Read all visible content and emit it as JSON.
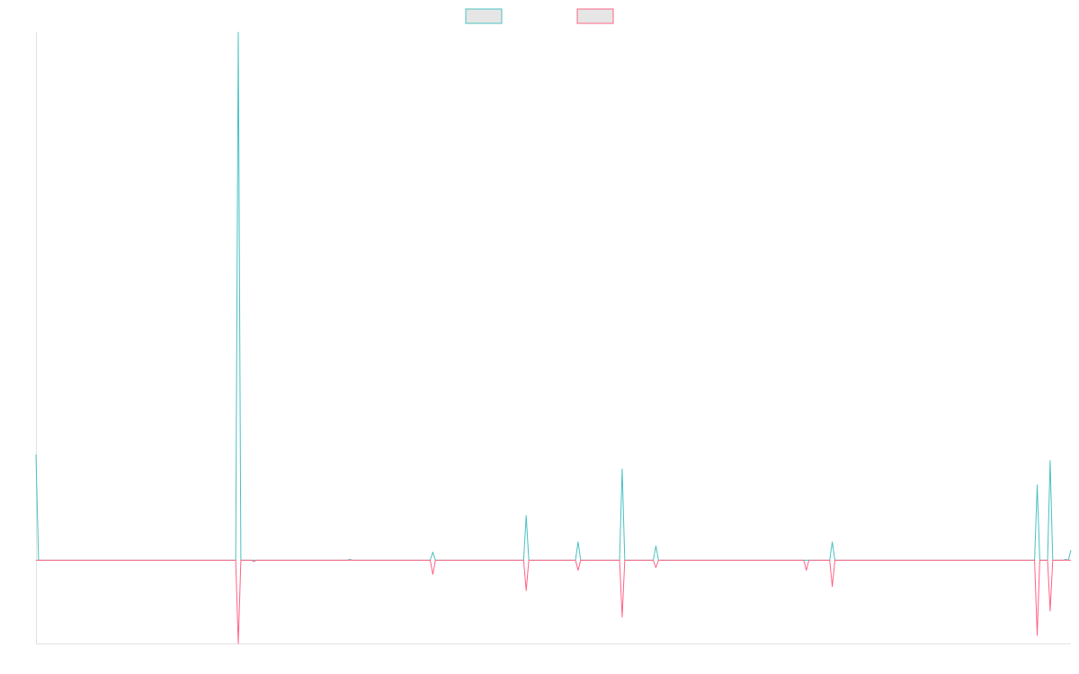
{
  "chart_data": {
    "type": "line",
    "title": "",
    "xlabel": "",
    "ylabel": "",
    "x": [
      0,
      1,
      2,
      3,
      4,
      5,
      6,
      7,
      8,
      9,
      10,
      11,
      12,
      13,
      14,
      15,
      16,
      17,
      18,
      19,
      20,
      21,
      22,
      23,
      24,
      25,
      26,
      27,
      28,
      29,
      30,
      31,
      32,
      33,
      34,
      35,
      36,
      37,
      38,
      39,
      40,
      41,
      42,
      43,
      44,
      45,
      46,
      47,
      48,
      49,
      50,
      51,
      52,
      53,
      54,
      55,
      56,
      57,
      58,
      59,
      60,
      61,
      62,
      63,
      64,
      65,
      66,
      67,
      68,
      69,
      70,
      71,
      72,
      73,
      74,
      75,
      76,
      77,
      78,
      79,
      80,
      81,
      82,
      83,
      84,
      85,
      86,
      87,
      88,
      89,
      90,
      91,
      92,
      93,
      94,
      95,
      96,
      97,
      98,
      99,
      100,
      101,
      102,
      103,
      104,
      105,
      106,
      107,
      108,
      109,
      110,
      111,
      112,
      113,
      114,
      115,
      116,
      117,
      118,
      119,
      120,
      121,
      122,
      123,
      124,
      125,
      126,
      127,
      128,
      129,
      130,
      131,
      132,
      133,
      134,
      135,
      136,
      137,
      138,
      139,
      140,
      141,
      142,
      143,
      144,
      145,
      146,
      147,
      148,
      149,
      150,
      151,
      152,
      153,
      154,
      155,
      156,
      157,
      158,
      159,
      160,
      161,
      162,
      163,
      164,
      165,
      166,
      167,
      168,
      169,
      170,
      171,
      172,
      173,
      174,
      175,
      176,
      177,
      178,
      179,
      180,
      181,
      182,
      183,
      184,
      185,
      186,
      187,
      188,
      189,
      190,
      191,
      192,
      193,
      194,
      195,
      196,
      197,
      198,
      199,
      200,
      201,
      202,
      203,
      204,
      205,
      206,
      207,
      208,
      209,
      210,
      211,
      212,
      213,
      214,
      215,
      216,
      217,
      218,
      219,
      220,
      221,
      222,
      223,
      224,
      225,
      226,
      227,
      228,
      229,
      230,
      231,
      232,
      233,
      234,
      235,
      236,
      237,
      238,
      239,
      240,
      241,
      242,
      243,
      244,
      245,
      246,
      247,
      248,
      249,
      250,
      251,
      252,
      253,
      254,
      255,
      256,
      257,
      258,
      259,
      260,
      261,
      262,
      263,
      264,
      265,
      266,
      267,
      268,
      269,
      270,
      271,
      272,
      273,
      274,
      275,
      276,
      277,
      278,
      279,
      280,
      281,
      282,
      283,
      284,
      285,
      286,
      287,
      288,
      289,
      290,
      291,
      292,
      293,
      294,
      295,
      296,
      297,
      298,
      299,
      300,
      301,
      302,
      303,
      304,
      305,
      306,
      307,
      308,
      309,
      310,
      311,
      312,
      313,
      314,
      315,
      316,
      317,
      318,
      319,
      320,
      321,
      322,
      323,
      324,
      325,
      326,
      327,
      328,
      329,
      330,
      331,
      332,
      333,
      334,
      335,
      336,
      337,
      338,
      339,
      340,
      341,
      342,
      343,
      344,
      345,
      346,
      347,
      348,
      349,
      350,
      351,
      352,
      353,
      354,
      355,
      356,
      357,
      358,
      359,
      360,
      361,
      362,
      363,
      364,
      365,
      366,
      367,
      368,
      369,
      370,
      371,
      372,
      373,
      374,
      375,
      376,
      377,
      378,
      379,
      380,
      381,
      382,
      383,
      384,
      385,
      386,
      387,
      388,
      389,
      390,
      391,
      392,
      393,
      394,
      395,
      396,
      397,
      398,
      399
    ],
    "series": [
      {
        "name": "",
        "color": "#4bc0c0",
        "points": [
          [
            0,
            26
          ],
          [
            1,
            0
          ],
          [
            77,
            0
          ],
          [
            78,
            130
          ],
          [
            79,
            0
          ],
          [
            83,
            0
          ],
          [
            84,
            0
          ],
          [
            85,
            0
          ],
          [
            120,
            0
          ],
          [
            121,
            0.2
          ],
          [
            122,
            0
          ],
          [
            152,
            0
          ],
          [
            153,
            2
          ],
          [
            154,
            0
          ],
          [
            188,
            0
          ],
          [
            189,
            11
          ],
          [
            190,
            0
          ],
          [
            208,
            0
          ],
          [
            209,
            4.5
          ],
          [
            210,
            0
          ],
          [
            225,
            0
          ],
          [
            226,
            22.5
          ],
          [
            227,
            0
          ],
          [
            238,
            0
          ],
          [
            239,
            3.5
          ],
          [
            240,
            0
          ],
          [
            306,
            0
          ],
          [
            307,
            4.5
          ],
          [
            308,
            0
          ],
          [
            385,
            0
          ],
          [
            386,
            18.5
          ],
          [
            387,
            0
          ],
          [
            390,
            0
          ],
          [
            391,
            24.5
          ],
          [
            392,
            0
          ],
          [
            396,
            0
          ],
          [
            397,
            0.2
          ],
          [
            398,
            0
          ],
          [
            399,
            2.5
          ]
        ]
      },
      {
        "name": "",
        "color": "#ff6384",
        "points": [
          [
            0,
            0
          ],
          [
            77,
            0
          ],
          [
            78,
            -20.5
          ],
          [
            79,
            0
          ],
          [
            83,
            0
          ],
          [
            84,
            -0.3
          ],
          [
            85,
            0
          ],
          [
            152,
            0
          ],
          [
            153,
            -3.5
          ],
          [
            154,
            0
          ],
          [
            188,
            0
          ],
          [
            189,
            -7.5
          ],
          [
            190,
            0
          ],
          [
            208,
            0
          ],
          [
            209,
            -2.5
          ],
          [
            210,
            0
          ],
          [
            225,
            0
          ],
          [
            226,
            -14
          ],
          [
            227,
            0
          ],
          [
            238,
            0
          ],
          [
            239,
            -1.8
          ],
          [
            240,
            0
          ],
          [
            296,
            0
          ],
          [
            297,
            -2.5
          ],
          [
            298,
            0
          ],
          [
            306,
            0
          ],
          [
            307,
            -6.5
          ],
          [
            308,
            0
          ],
          [
            385,
            0
          ],
          [
            386,
            -18.5
          ],
          [
            387,
            0
          ],
          [
            390,
            0
          ],
          [
            391,
            -12.5
          ],
          [
            392,
            0
          ],
          [
            399,
            0
          ]
        ]
      }
    ],
    "xlim": [
      0,
      399
    ],
    "ylim": [
      -20.5,
      130
    ],
    "grid": false,
    "legend": "top-center"
  }
}
